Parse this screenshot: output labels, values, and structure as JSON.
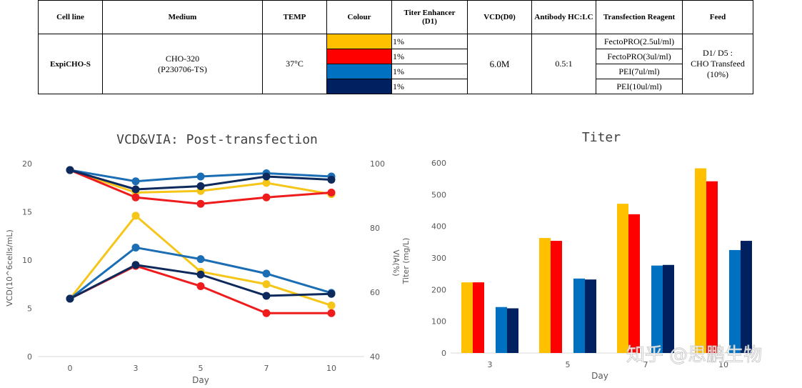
{
  "table": {
    "headers": [
      "Cell line",
      "Medium",
      "TEMP",
      "Colour",
      "Titer Enhancer\n(D1)",
      "VCD(D0)",
      "Antibody HC:LC",
      "Transfection Reagent",
      "Feed"
    ],
    "cell_line": "ExpiCHO-S",
    "medium_line1": "CHO-320",
    "medium_line2": "(P230706-TS)",
    "temp": "37°C",
    "vcd_d0": "6.0M",
    "antibody_ratio": "0.5:1",
    "feed_line1": "D1/ D5 :",
    "feed_line2": "CHO Transfeed",
    "feed_line3": "(10%)",
    "rows": [
      {
        "color": "#FFC000",
        "enhancer": "1%",
        "reagent": "FectoPRO(2.5ul/ml)"
      },
      {
        "color": "#FF0000",
        "enhancer": "1%",
        "reagent": "FectoPRO(3ul/ml)"
      },
      {
        "color": "#0070C0",
        "enhancer": "1%",
        "reagent": "PEI(7ul/ml)"
      },
      {
        "color": "#002060",
        "enhancer": "1%",
        "reagent": "PEI(10ul/ml)"
      }
    ]
  },
  "chart_data": [
    {
      "type": "line",
      "title": "VCD&VIA: Post-transfection",
      "xlabel": "Day",
      "ylabel": "VCD(10^6cells/mL)",
      "y2label": "VIA(%)",
      "x": [
        0,
        3,
        5,
        7,
        10
      ],
      "ylim": [
        0,
        20
      ],
      "y2lim": [
        40,
        100
      ],
      "yticks": [
        "0",
        "5",
        "10",
        "15",
        "20"
      ],
      "y2ticks": [
        "40",
        "60",
        "80",
        "100"
      ],
      "xticks": [
        "0",
        "3",
        "5",
        "7",
        "10"
      ],
      "series_vcd": [
        {
          "name": "FectoPRO(2.5ul/ml)",
          "color": "#F5C518",
          "values": [
            6.0,
            14.6,
            8.8,
            7.5,
            5.3
          ]
        },
        {
          "name": "FectoPRO(3ul/ml)",
          "color": "#EE1C1C",
          "values": [
            6.0,
            9.4,
            7.3,
            4.5,
            4.5
          ]
        },
        {
          "name": "PEI(7ul/ml)",
          "color": "#1B6DB4",
          "values": [
            6.0,
            11.3,
            10.1,
            8.6,
            6.6
          ]
        },
        {
          "name": "PEI(10ul/ml)",
          "color": "#0E2A5C",
          "values": [
            6.0,
            9.5,
            8.5,
            6.3,
            6.5
          ]
        }
      ],
      "series_via": [
        {
          "name": "FectoPRO(2.5ul/ml)",
          "color": "#F5C518",
          "values": [
            98,
            91,
            91.5,
            94,
            90.5
          ]
        },
        {
          "name": "FectoPRO(3ul/ml)",
          "color": "#EE1C1C",
          "values": [
            98,
            89.5,
            87.5,
            89.5,
            91
          ]
        },
        {
          "name": "PEI(7ul/ml)",
          "color": "#1B6DB4",
          "values": [
            98,
            94.5,
            96,
            97,
            96
          ]
        },
        {
          "name": "PEI(10ul/ml)",
          "color": "#0E2A5C",
          "values": [
            98,
            92,
            93,
            96,
            95
          ]
        }
      ]
    },
    {
      "type": "bar",
      "title": "Titer",
      "xlabel": "Day",
      "ylabel": "Titer (mg/L)",
      "categories": [
        "3",
        "5",
        "7",
        "10"
      ],
      "ylim": [
        0,
        600
      ],
      "yticks": [
        "0",
        "100",
        "200",
        "300",
        "400",
        "500",
        "600"
      ],
      "series": [
        {
          "name": "FectoPRO(2.5ul/ml)",
          "color": "#FFC000",
          "values": [
            223,
            363,
            471,
            583
          ]
        },
        {
          "name": "FectoPRO(3ul/ml)",
          "color": "#FF0000",
          "values": [
            223,
            354,
            438,
            542
          ]
        },
        {
          "name": "PEI(7ul/ml)",
          "color": "#0070C0",
          "values": [
            145,
            235,
            276,
            325
          ]
        },
        {
          "name": "PEI(10ul/ml)",
          "color": "#002060",
          "values": [
            141,
            232,
            278,
            354
          ]
        }
      ]
    }
  ],
  "watermark": "知乎 @思鹏生物"
}
